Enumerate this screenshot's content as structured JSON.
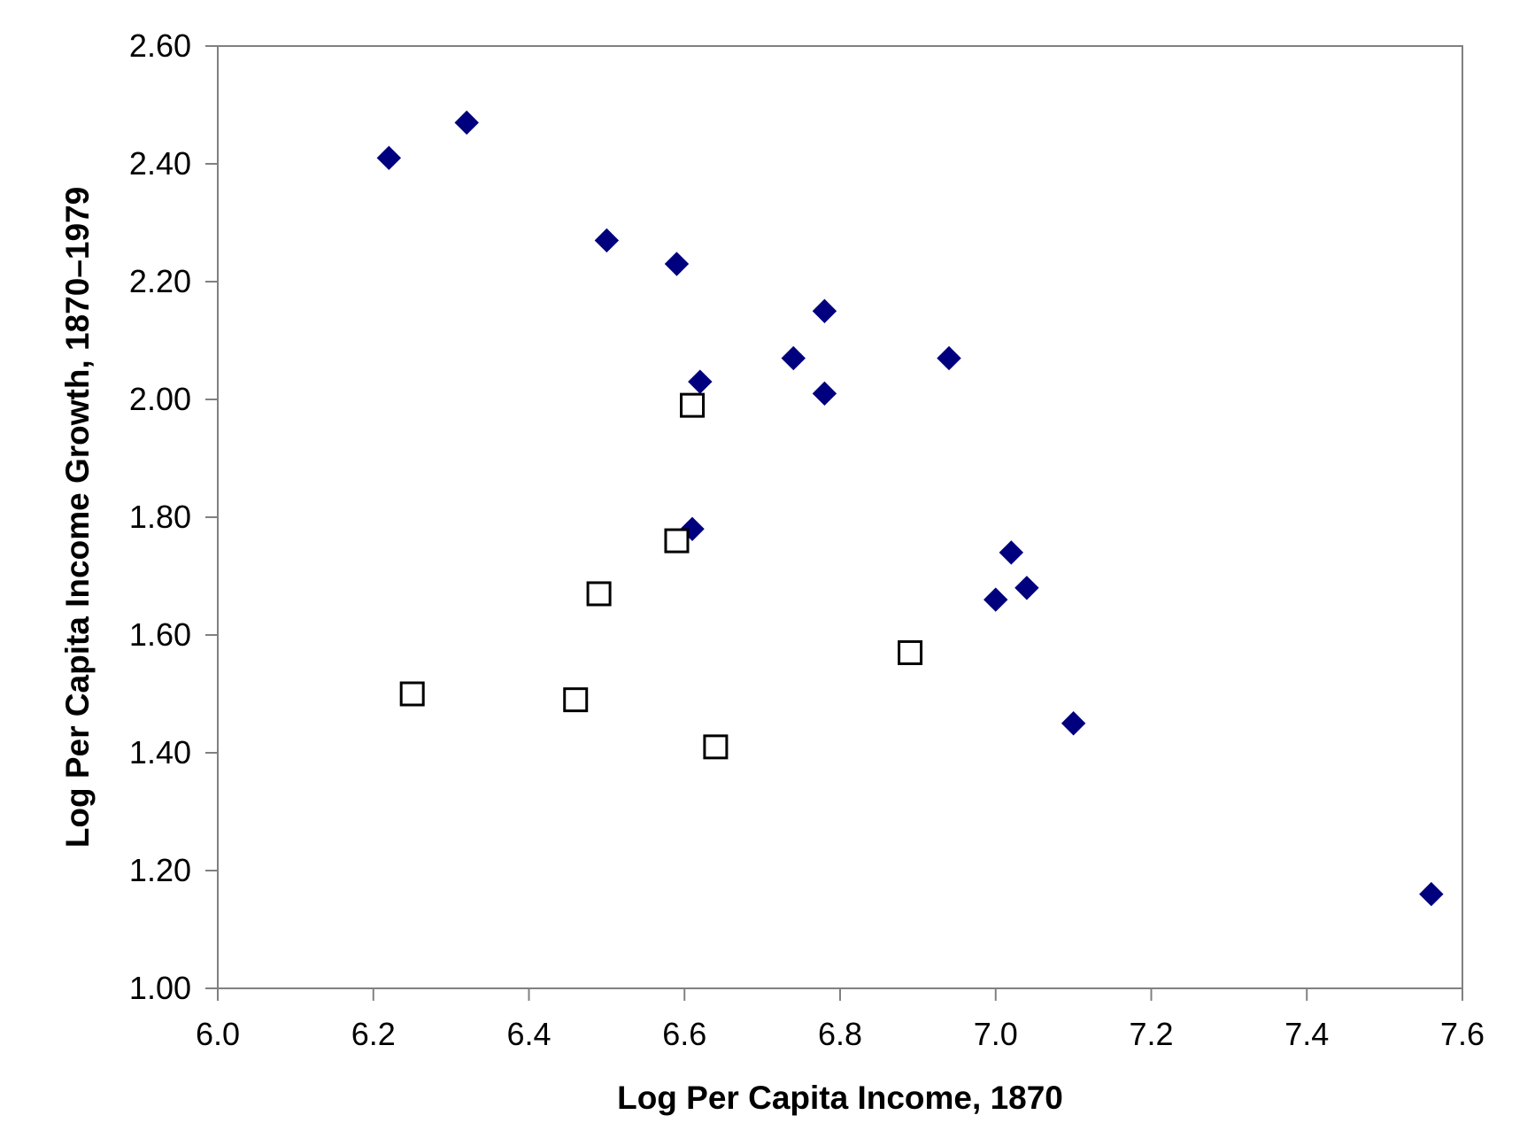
{
  "chart_data": {
    "type": "scatter",
    "title": "",
    "xlabel": "Log Per Capita Income, 1870",
    "ylabel": "Log Per Capita Income Growth, 1870–1979",
    "xlim": [
      6.0,
      7.6
    ],
    "ylim": [
      1.0,
      2.6
    ],
    "x_ticks": [
      "6.0",
      "6.2",
      "6.4",
      "6.6",
      "6.8",
      "7.0",
      "7.2",
      "7.4",
      "7.6"
    ],
    "y_ticks": [
      "1.00",
      "1.20",
      "1.40",
      "1.60",
      "1.80",
      "2.00",
      "2.20",
      "2.40",
      "2.60"
    ],
    "grid": false,
    "legend": "none",
    "series": [
      {
        "marker": "filled-diamond",
        "color": "#00007f",
        "points": [
          [
            6.22,
            2.41
          ],
          [
            6.32,
            2.47
          ],
          [
            6.5,
            2.27
          ],
          [
            6.59,
            2.23
          ],
          [
            6.62,
            2.03
          ],
          [
            6.61,
            1.78
          ],
          [
            6.74,
            2.07
          ],
          [
            6.78,
            2.15
          ],
          [
            6.78,
            2.01
          ],
          [
            6.94,
            2.07
          ],
          [
            7.02,
            1.74
          ],
          [
            7.0,
            1.66
          ],
          [
            7.04,
            1.68
          ],
          [
            7.1,
            1.45
          ],
          [
            7.56,
            1.16
          ]
        ]
      },
      {
        "marker": "open-square",
        "color": "#000000",
        "points": [
          [
            6.25,
            1.5
          ],
          [
            6.46,
            1.49
          ],
          [
            6.49,
            1.67
          ],
          [
            6.59,
            1.76
          ],
          [
            6.61,
            1.99
          ],
          [
            6.64,
            1.41
          ],
          [
            6.89,
            1.57
          ]
        ]
      }
    ]
  }
}
